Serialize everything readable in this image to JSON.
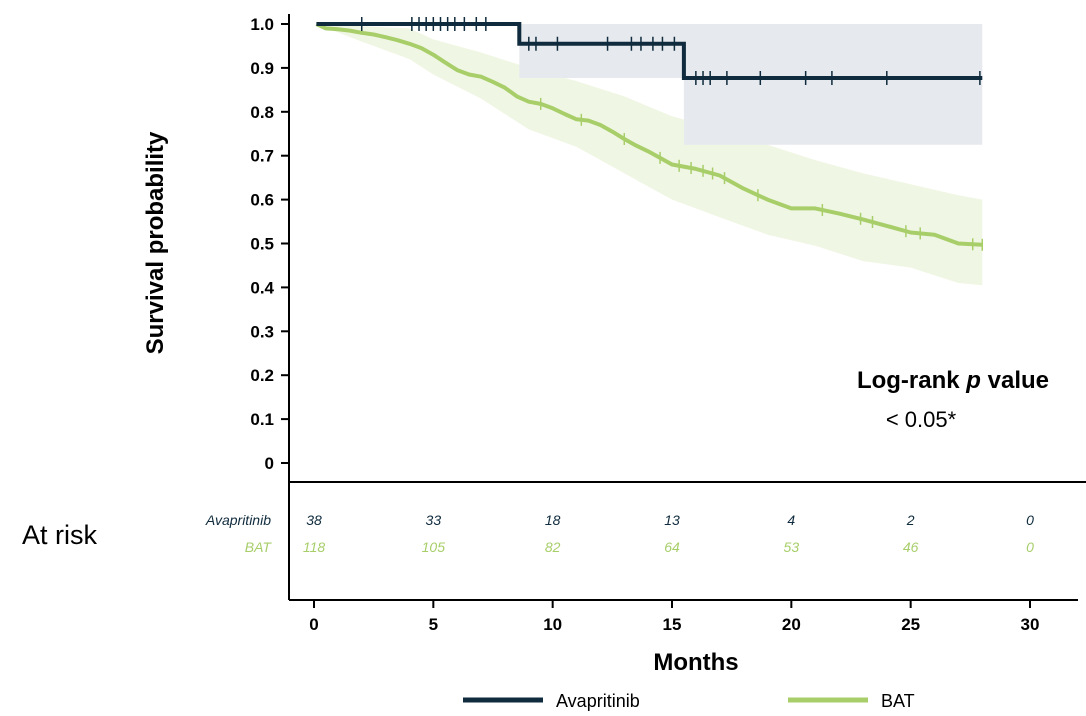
{
  "chart_data": {
    "type": "line",
    "subtype": "kaplan-meier",
    "ylabel": "Survival probability",
    "xlabel": "Months",
    "xlim": [
      0,
      30
    ],
    "ylim": [
      0,
      1.0
    ],
    "x_ticks": [
      "0",
      "5",
      "10",
      "15",
      "20",
      "25",
      "30"
    ],
    "y_ticks": [
      "0",
      "0.1",
      "0.2",
      "0.3",
      "0.4",
      "0.5",
      "0.6",
      "0.7",
      "0.8",
      "0.9",
      "1.0"
    ],
    "grid": false,
    "series": [
      {
        "name": "Avapritinib",
        "color": "#0f2b3d",
        "ci_color": "#e6e9ee",
        "steps": [
          [
            0.1,
            1.0
          ],
          [
            8.6,
            1.0
          ],
          [
            8.6,
            0.955
          ],
          [
            15.5,
            0.955
          ],
          [
            15.5,
            0.877
          ],
          [
            28.0,
            0.877
          ]
        ],
        "ci_upper": [
          [
            8.6,
            1.0
          ],
          [
            28.0,
            1.0
          ]
        ],
        "ci_lower": [
          [
            8.6,
            0.877
          ],
          [
            15.5,
            0.877
          ],
          [
            15.5,
            0.725
          ],
          [
            28.0,
            0.725
          ]
        ],
        "censored_x": [
          2.0,
          4.1,
          4.4,
          4.7,
          5.0,
          5.3,
          5.6,
          5.9,
          6.3,
          6.8,
          7.2,
          9.0,
          9.3,
          10.2,
          12.3,
          13.3,
          13.7,
          14.2,
          14.6,
          15.1,
          16.0,
          16.3,
          16.6,
          17.3,
          18.7,
          20.6,
          21.7,
          24.0,
          27.9
        ]
      },
      {
        "name": "BAT",
        "color": "#a8ce6a",
        "ci_color": "#f0f6e4",
        "curve": [
          [
            0.1,
            1.0
          ],
          [
            0.5,
            0.99
          ],
          [
            1.0,
            0.988
          ],
          [
            1.5,
            0.985
          ],
          [
            2.0,
            0.98
          ],
          [
            2.5,
            0.976
          ],
          [
            3.0,
            0.97
          ],
          [
            3.5,
            0.963
          ],
          [
            4.0,
            0.955
          ],
          [
            4.5,
            0.945
          ],
          [
            5.0,
            0.93
          ],
          [
            5.5,
            0.912
          ],
          [
            6.0,
            0.895
          ],
          [
            6.5,
            0.885
          ],
          [
            7.0,
            0.88
          ],
          [
            7.5,
            0.868
          ],
          [
            8.0,
            0.855
          ],
          [
            8.5,
            0.835
          ],
          [
            9.0,
            0.823
          ],
          [
            9.5,
            0.818
          ],
          [
            10.0,
            0.808
          ],
          [
            10.5,
            0.795
          ],
          [
            11.0,
            0.783
          ],
          [
            11.5,
            0.78
          ],
          [
            12.0,
            0.77
          ],
          [
            12.5,
            0.755
          ],
          [
            13.0,
            0.738
          ],
          [
            13.5,
            0.723
          ],
          [
            14.0,
            0.71
          ],
          [
            14.5,
            0.695
          ],
          [
            15.0,
            0.68
          ],
          [
            16.0,
            0.67
          ],
          [
            17.0,
            0.655
          ],
          [
            18.0,
            0.625
          ],
          [
            19.0,
            0.6
          ],
          [
            20.0,
            0.58
          ],
          [
            21.0,
            0.58
          ],
          [
            22.0,
            0.568
          ],
          [
            23.0,
            0.555
          ],
          [
            24.0,
            0.54
          ],
          [
            25.0,
            0.525
          ],
          [
            26.0,
            0.52
          ],
          [
            27.0,
            0.5
          ],
          [
            28.0,
            0.497
          ]
        ],
        "ci_upper": [
          [
            0.1,
            1.0
          ],
          [
            2.0,
            0.995
          ],
          [
            4.0,
            0.99
          ],
          [
            5.0,
            0.965
          ],
          [
            7.0,
            0.935
          ],
          [
            9.0,
            0.9
          ],
          [
            11.0,
            0.87
          ],
          [
            13.0,
            0.835
          ],
          [
            15.0,
            0.79
          ],
          [
            17.0,
            0.76
          ],
          [
            19.0,
            0.725
          ],
          [
            21.0,
            0.69
          ],
          [
            23.0,
            0.66
          ],
          [
            25.0,
            0.635
          ],
          [
            27.0,
            0.61
          ],
          [
            28.0,
            0.6
          ]
        ],
        "ci_lower": [
          [
            0.1,
            1.0
          ],
          [
            2.0,
            0.96
          ],
          [
            4.0,
            0.92
          ],
          [
            5.0,
            0.885
          ],
          [
            7.0,
            0.83
          ],
          [
            9.0,
            0.76
          ],
          [
            11.0,
            0.72
          ],
          [
            13.0,
            0.66
          ],
          [
            15.0,
            0.6
          ],
          [
            17.0,
            0.56
          ],
          [
            19.0,
            0.52
          ],
          [
            21.0,
            0.495
          ],
          [
            23.0,
            0.46
          ],
          [
            25.0,
            0.445
          ],
          [
            27.0,
            0.41
          ],
          [
            28.0,
            0.405
          ]
        ],
        "censored_x": [
          9.5,
          11.2,
          13.0,
          14.5,
          15.3,
          15.8,
          16.3,
          16.7,
          17.2,
          18.6,
          21.3,
          22.9,
          23.4,
          24.8,
          25.4,
          27.6,
          28.0
        ]
      }
    ],
    "annotation": {
      "title_prefix": "Log-rank ",
      "title_italic": "p",
      "title_suffix": " value",
      "value": "< 0.05*"
    },
    "at_risk": {
      "title": "At risk",
      "x": [
        0,
        5,
        10,
        15,
        20,
        25,
        30
      ],
      "rows": [
        {
          "name": "Avapritinib",
          "values": [
            "38",
            "33",
            "18",
            "13",
            "4",
            "2",
            "0"
          ],
          "color": "#0f2b3d"
        },
        {
          "name": "BAT",
          "values": [
            "118",
            "105",
            "82",
            "64",
            "53",
            "46",
            "0"
          ],
          "color": "#a8ce6a"
        }
      ]
    },
    "legend": [
      "Avapritinib",
      "BAT"
    ]
  }
}
